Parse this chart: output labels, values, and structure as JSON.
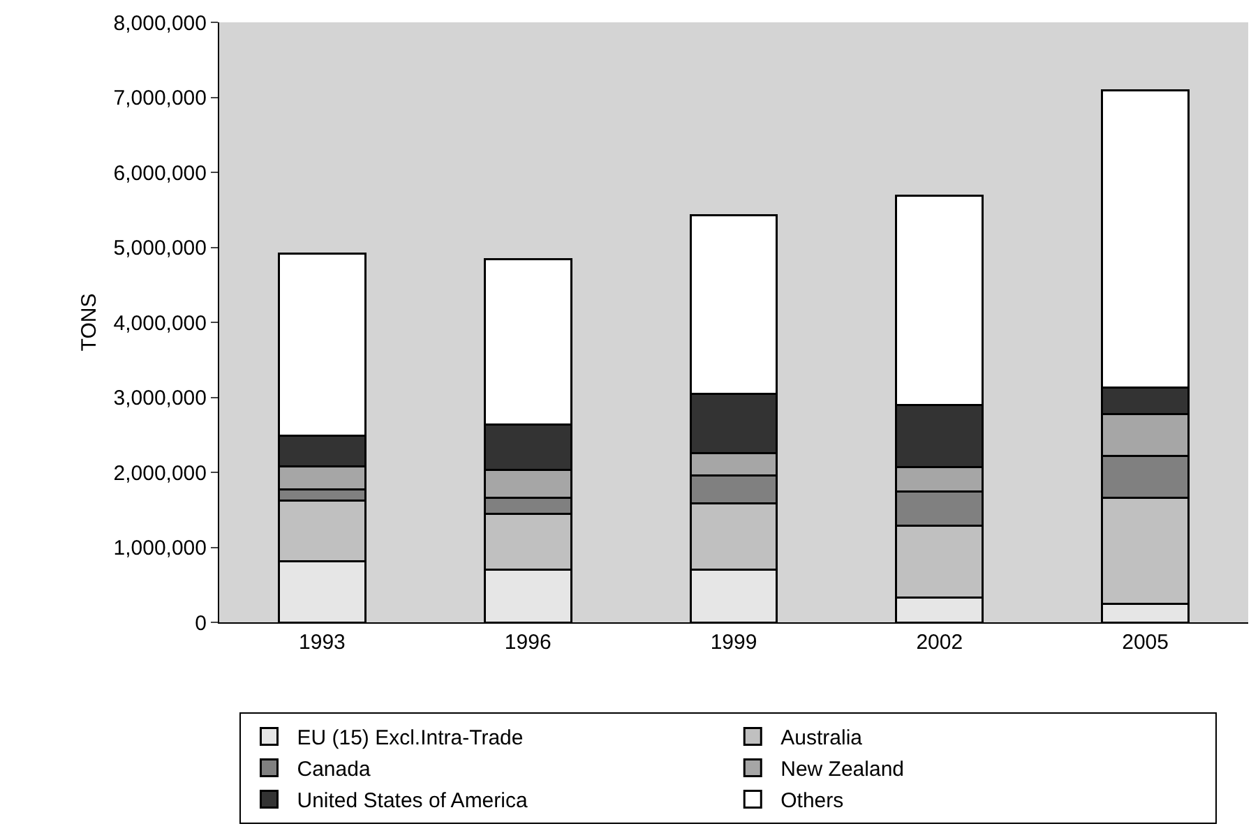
{
  "chart_data": {
    "type": "bar",
    "stacked": true,
    "ylabel": "TONS",
    "categories": [
      "1993",
      "1996",
      "1999",
      "2002",
      "2005"
    ],
    "series": [
      {
        "name": "EU (15) Excl.Intra-Trade",
        "color": "#e6e6e6",
        "values": [
          810000,
          700000,
          700000,
          330000,
          250000
        ]
      },
      {
        "name": "Australia",
        "color": "#c0c0c0",
        "values": [
          810000,
          750000,
          890000,
          960000,
          1410000
        ]
      },
      {
        "name": "Canada",
        "color": "#808080",
        "values": [
          150000,
          210000,
          370000,
          450000,
          560000
        ]
      },
      {
        "name": "New Zealand",
        "color": "#a6a6a6",
        "values": [
          310000,
          370000,
          300000,
          330000,
          560000
        ]
      },
      {
        "name": "United States of America",
        "color": "#333333",
        "values": [
          410000,
          610000,
          790000,
          830000,
          350000
        ]
      },
      {
        "name": "Others",
        "color": "#ffffff",
        "values": [
          2430000,
          2200000,
          2380000,
          2790000,
          3960000
        ]
      }
    ],
    "ylim": [
      0,
      8000000
    ],
    "yticks": [
      {
        "value": 0,
        "label": "0"
      },
      {
        "value": 1000000,
        "label": "1,000,000"
      },
      {
        "value": 2000000,
        "label": "2,000,000"
      },
      {
        "value": 3000000,
        "label": "3,000,000"
      },
      {
        "value": 4000000,
        "label": "4,000,000"
      },
      {
        "value": 5000000,
        "label": "5,000,000"
      },
      {
        "value": 6000000,
        "label": "6,000,000"
      },
      {
        "value": 7000000,
        "label": "7,000,000"
      },
      {
        "value": 8000000,
        "label": "8,000,000"
      }
    ],
    "grid": false,
    "legend": "bottom"
  }
}
